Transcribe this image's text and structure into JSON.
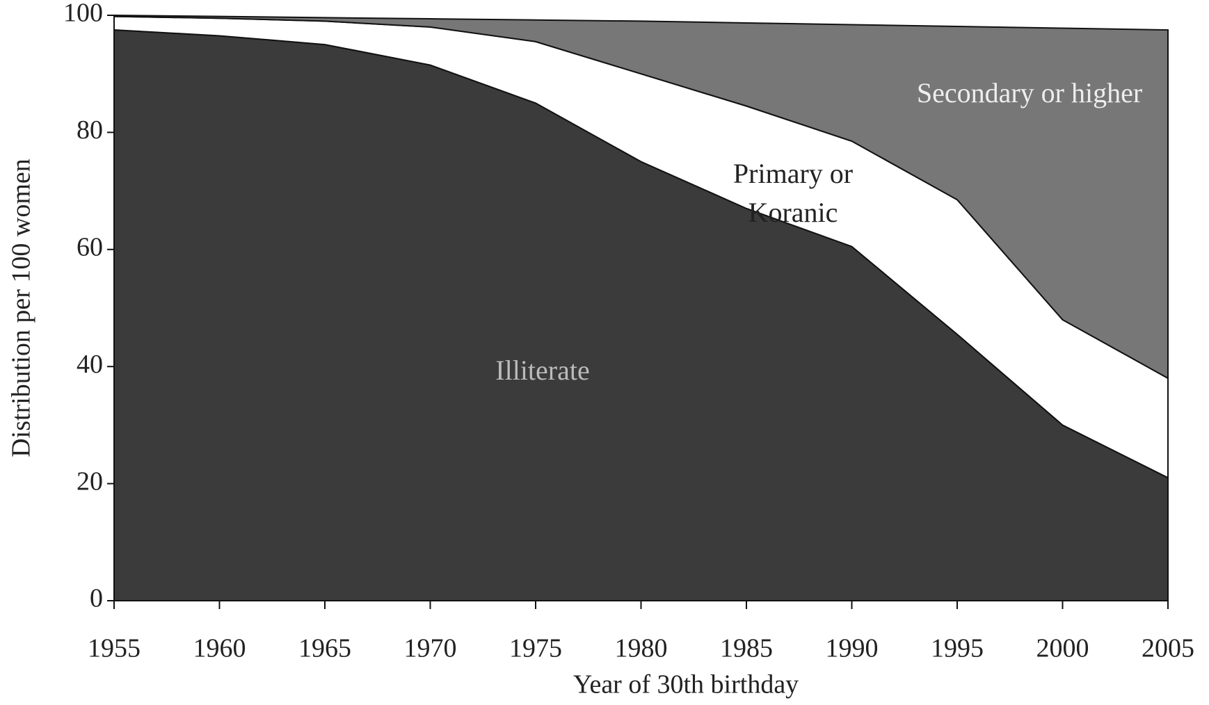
{
  "chart_data": {
    "type": "stacked_area",
    "x_label": "Year of 30th birthday",
    "y_label": "Distribution per 100 women",
    "x": [
      1955,
      1960,
      1965,
      1970,
      1975,
      1980,
      1985,
      1990,
      1995,
      2000,
      2005
    ],
    "series": [
      {
        "name": "Illiterate",
        "color": "#3b3b3b",
        "values": [
          97.5,
          96.5,
          95,
          91.5,
          85,
          75,
          67,
          60.5,
          45.5,
          30,
          21
        ]
      },
      {
        "name": "Primary or Koranic",
        "color": "#ffffff",
        "values": [
          2.3,
          3,
          4,
          6.5,
          10.5,
          15,
          17.5,
          18,
          23,
          18,
          17
        ]
      },
      {
        "name": "Secondary or higher",
        "color": "#777777",
        "values": [
          0.2,
          0.3,
          0.6,
          1.4,
          3.7,
          9,
          14.2,
          19.9,
          29.6,
          49.8,
          59.5
        ]
      }
    ],
    "xlim": [
      1955,
      2005
    ],
    "xticks": [
      1955,
      1960,
      1965,
      1970,
      1975,
      1980,
      1985,
      1990,
      1995,
      2000,
      2005
    ],
    "ylim": [
      0,
      100
    ],
    "yticks": [
      0,
      20,
      40,
      60,
      80,
      100
    ]
  }
}
